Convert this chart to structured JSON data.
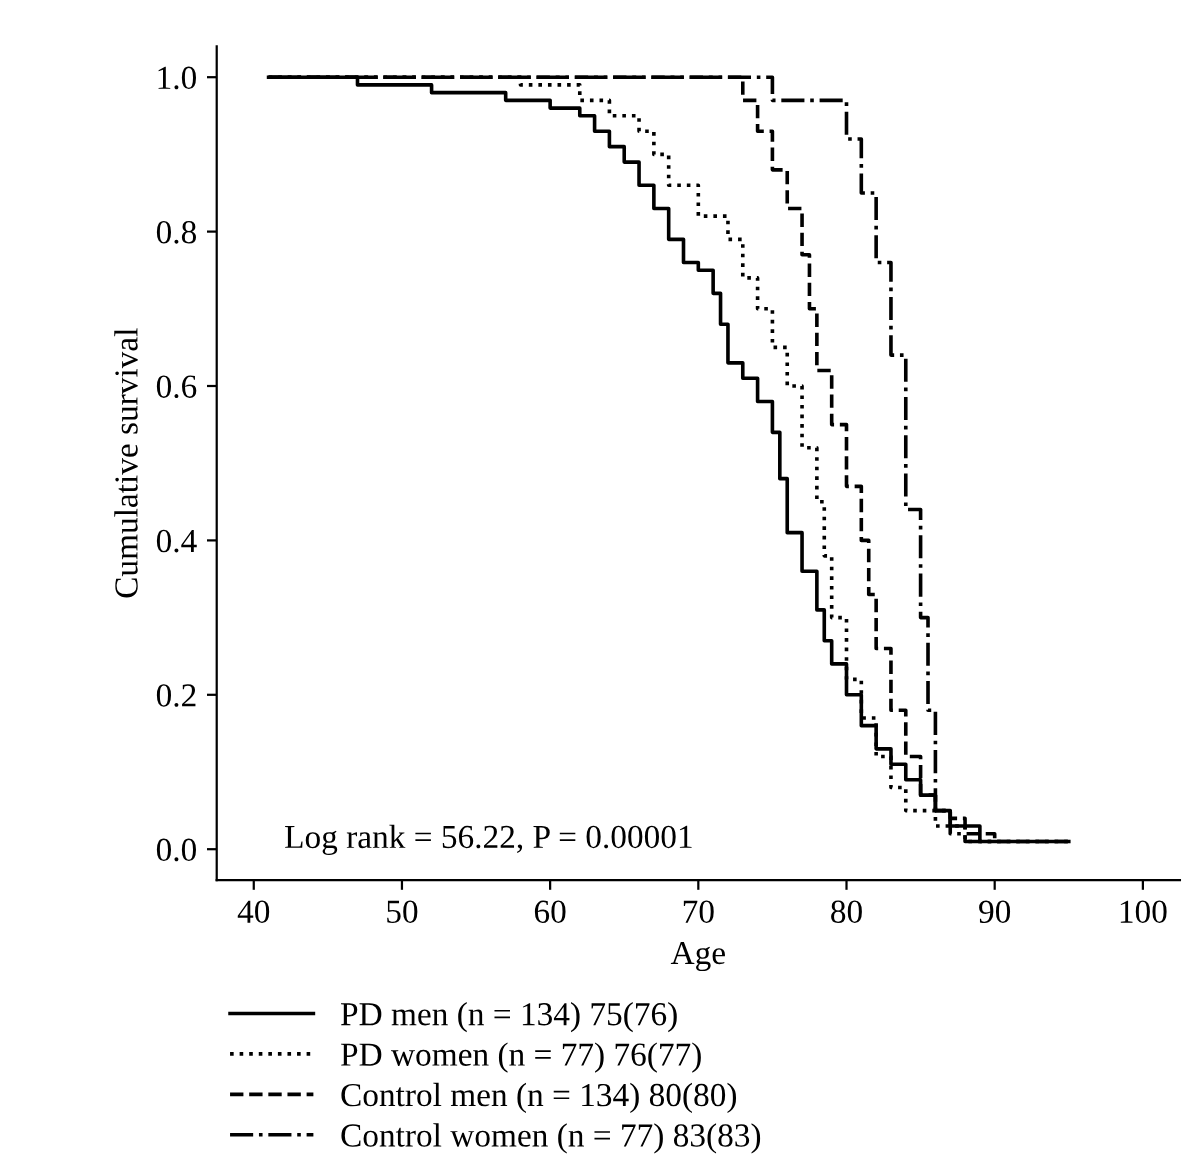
{
  "chart_data": {
    "type": "step",
    "xlabel": "Age",
    "ylabel": "Cumulative survival",
    "xlim": [
      37.5,
      102.5
    ],
    "ylim": [
      -0.04,
      1.04
    ],
    "xticks": [
      40,
      50,
      60,
      70,
      80,
      90,
      100
    ],
    "yticks": [
      {
        "value": 0,
        "label": "0.0"
      },
      {
        "value": 0.2,
        "label": "0.2"
      },
      {
        "value": 0.4,
        "label": "0.4"
      },
      {
        "value": 0.6,
        "label": "0.6"
      },
      {
        "value": 0.8,
        "label": "0.8"
      },
      {
        "value": 1,
        "label": "1.0"
      }
    ],
    "grid": false,
    "legend": "bottom",
    "annotations": [
      "Log rank = 56.22, P = 0.00001"
    ],
    "series": [
      {
        "name": "PD men (n = 134) 75(76)",
        "color": "#000000",
        "line_style": "solid",
        "x": [
          41,
          47,
          52,
          57,
          60,
          62,
          63,
          64,
          65,
          66,
          67,
          68,
          69,
          70,
          71,
          71.5,
          72,
          73,
          74,
          75,
          75.5,
          76,
          77,
          78,
          78.5,
          79,
          80,
          81,
          82,
          83,
          84,
          85,
          86,
          87,
          89,
          95
        ],
        "values": [
          1.0,
          0.99,
          0.98,
          0.97,
          0.96,
          0.95,
          0.93,
          0.91,
          0.89,
          0.86,
          0.83,
          0.79,
          0.76,
          0.75,
          0.72,
          0.68,
          0.63,
          0.61,
          0.58,
          0.54,
          0.48,
          0.41,
          0.36,
          0.31,
          0.27,
          0.24,
          0.2,
          0.16,
          0.13,
          0.11,
          0.09,
          0.07,
          0.05,
          0.03,
          0.01,
          0.01
        ]
      },
      {
        "name": "PD women (n = 77) 76(77)",
        "color": "#000000",
        "line_style": "dotted",
        "x": [
          41,
          55,
          58,
          62,
          64,
          66,
          67,
          68,
          70,
          72,
          73,
          74,
          75,
          76,
          77,
          78,
          78.5,
          79,
          80,
          81,
          82,
          83,
          84,
          86,
          88,
          95
        ],
        "values": [
          1.0,
          1.0,
          0.99,
          0.97,
          0.95,
          0.93,
          0.9,
          0.86,
          0.82,
          0.79,
          0.74,
          0.7,
          0.65,
          0.6,
          0.52,
          0.45,
          0.38,
          0.3,
          0.22,
          0.17,
          0.12,
          0.08,
          0.05,
          0.03,
          0.01,
          0.01
        ]
      },
      {
        "name": "Control men (n = 134) 80(80)",
        "color": "#000000",
        "line_style": "dashed",
        "x": [
          41,
          72.5,
          73,
          74,
          75,
          76,
          77,
          77.5,
          78,
          79,
          80,
          81,
          81.5,
          82,
          83,
          84,
          85,
          86,
          87,
          88,
          90,
          95
        ],
        "values": [
          1.0,
          1.0,
          0.97,
          0.93,
          0.88,
          0.83,
          0.77,
          0.7,
          0.62,
          0.55,
          0.47,
          0.4,
          0.33,
          0.26,
          0.18,
          0.12,
          0.07,
          0.05,
          0.04,
          0.02,
          0.01,
          0.01
        ]
      },
      {
        "name": "Control women (n = 77) 83(83)",
        "color": "#000000",
        "line_style": "dashdot",
        "x": [
          41,
          74,
          75,
          79,
          80,
          81,
          82,
          83,
          84,
          85,
          85.5,
          86,
          87,
          88,
          90
        ],
        "values": [
          1.0,
          1.0,
          0.97,
          0.97,
          0.92,
          0.85,
          0.76,
          0.64,
          0.44,
          0.3,
          0.18,
          0.05,
          0.02,
          0.01,
          0.01
        ]
      }
    ]
  }
}
